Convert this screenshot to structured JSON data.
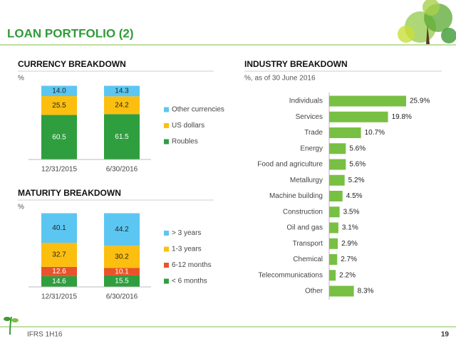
{
  "title": "LOAN  PORTFOLIO (2)",
  "footer": {
    "left": "IFRS 1H16",
    "page": "19"
  },
  "chart_data": [
    {
      "type": "bar",
      "stacked": true,
      "title": "CURRENCY BREAKDOWN",
      "subtitle": "%",
      "categories": [
        "12/31/2015",
        "6/30/2016"
      ],
      "series": [
        {
          "name": "Roubles",
          "color": "#2f9e3f",
          "values": [
            60.5,
            61.5
          ],
          "value_labels": [
            "60.5",
            "61.5"
          ]
        },
        {
          "name": "US dollars",
          "color": "#fcbf0f",
          "values": [
            25.5,
            24.2
          ],
          "value_labels": [
            "25.5",
            "24.2"
          ]
        },
        {
          "name": "Other currencies",
          "color": "#5cc6f2",
          "values": [
            14,
            14.3
          ],
          "value_labels": [
            "14.0",
            "14.3"
          ]
        }
      ]
    },
    {
      "type": "bar",
      "stacked": true,
      "title": "MATURITY BREAKDOWN",
      "subtitle": "%",
      "categories": [
        "12/31/2015",
        "6/30/2016"
      ],
      "series": [
        {
          "name": "< 6 months",
          "color": "#2f9e3f",
          "values": [
            14.6,
            15.5
          ],
          "value_labels": [
            "14.6",
            "15.5"
          ]
        },
        {
          "name": "6-12 months",
          "color": "#e8532b",
          "values": [
            12.6,
            10.1
          ],
          "value_labels": [
            "12.6",
            "10.1"
          ]
        },
        {
          "name": "1-3 years",
          "color": "#fcbf0f",
          "values": [
            32.7,
            30.2
          ],
          "value_labels": [
            "32.7",
            "30.2"
          ]
        },
        {
          "name": "> 3 years",
          "color": "#5cc6f2",
          "values": [
            40.1,
            44.2
          ],
          "value_labels": [
            "40.1",
            "44.2"
          ]
        }
      ]
    },
    {
      "type": "hbar",
      "title": "INDUSTRY BREAKDOWN",
      "subtitle": "%, as of 30 June 2016",
      "color": "#78c043",
      "categories": [
        "Individuals",
        "Services",
        "Trade",
        "Energy",
        "Food and agriculture",
        "Metallurgy",
        "Machine building",
        "Construction",
        "Oil and gas",
        "Transport",
        "Chemical",
        "Telecommunications",
        "Other"
      ],
      "values": [
        25.9,
        19.8,
        10.7,
        5.6,
        5.6,
        5.2,
        4.5,
        3.5,
        3.1,
        2.9,
        2.7,
        2.2,
        8.3
      ],
      "value_labels": [
        "25.9%",
        "19.8%",
        "10.7%",
        "5.6%",
        "5.6%",
        "5.2%",
        "4.5%",
        "3.5%",
        "3.1%",
        "2.9%",
        "2.7%",
        "2.2%",
        "8.3%"
      ]
    }
  ]
}
